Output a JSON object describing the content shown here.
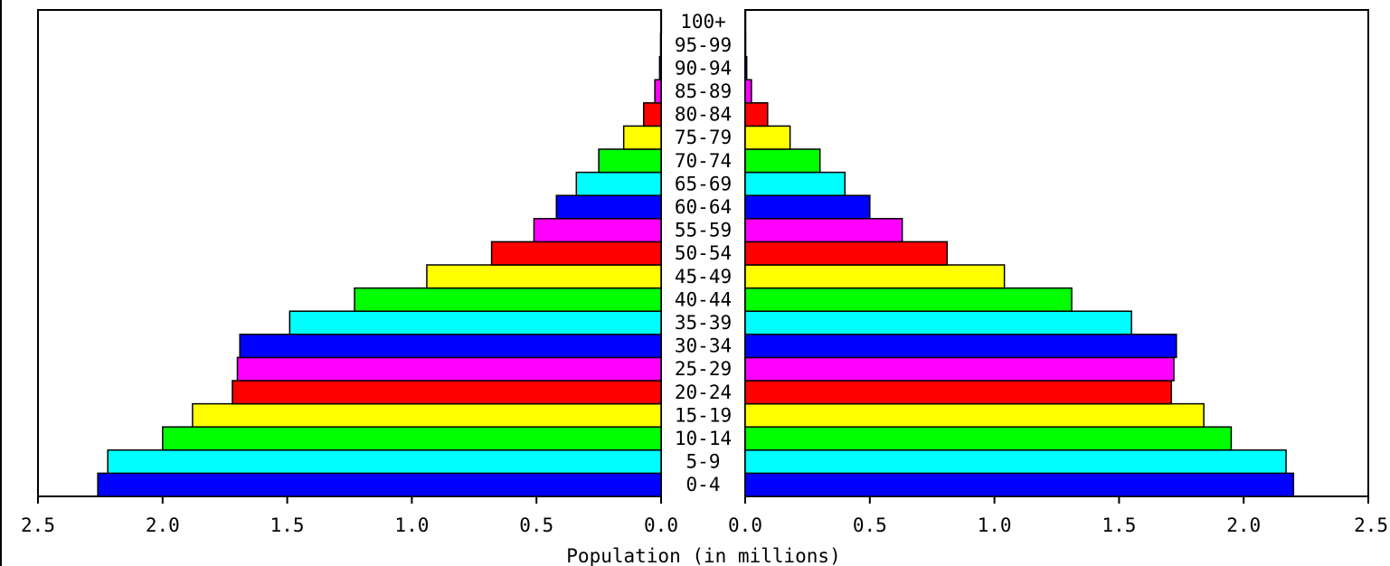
{
  "chart_data": {
    "type": "bar",
    "orientation": "horizontal",
    "layout": "population-pyramid",
    "xlabel": "Population (in millions)",
    "xlim": [
      0,
      2.5
    ],
    "x_ticks": [
      "2.5",
      "2.0",
      "1.5",
      "1.0",
      "0.5",
      "0.0"
    ],
    "x_ticks_right": [
      "0.0",
      "0.5",
      "1.0",
      "1.5",
      "2.0",
      "2.5"
    ],
    "grid": false,
    "categories": [
      "0-4",
      "5-9",
      "10-14",
      "15-19",
      "20-24",
      "25-29",
      "30-34",
      "35-39",
      "40-44",
      "45-49",
      "50-54",
      "55-59",
      "60-64",
      "65-69",
      "70-74",
      "75-79",
      "80-84",
      "85-89",
      "90-94",
      "95-99",
      "100+"
    ],
    "series": [
      {
        "side": "left",
        "values": [
          2.26,
          2.22,
          2.0,
          1.88,
          1.72,
          1.7,
          1.69,
          1.49,
          1.23,
          0.94,
          0.68,
          0.51,
          0.42,
          0.34,
          0.25,
          0.15,
          0.07,
          0.025,
          0.006,
          0.002,
          0.0005
        ]
      },
      {
        "side": "right",
        "values": [
          2.2,
          2.17,
          1.95,
          1.84,
          1.71,
          1.72,
          1.73,
          1.55,
          1.31,
          1.04,
          0.81,
          0.63,
          0.5,
          0.4,
          0.3,
          0.18,
          0.09,
          0.025,
          0.006,
          0.002,
          0.0005
        ]
      }
    ],
    "band_colors": [
      "#0000ff",
      "#00ffff",
      "#00ff00",
      "#ffff00",
      "#ff0000",
      "#ff00ff"
    ]
  }
}
